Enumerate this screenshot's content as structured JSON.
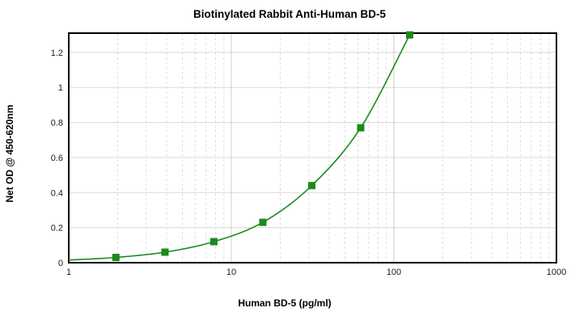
{
  "window": {
    "background": "#ffffff"
  },
  "chart_data": {
    "type": "line",
    "title": "Biotinylated Rabbit Anti-Human BD-5",
    "xlabel": "Human BD-5 (pg/ml)",
    "ylabel": "Net OD @ 450-620nm",
    "xscale": "log",
    "xlim": [
      1,
      1000
    ],
    "ylim": [
      0,
      1.31
    ],
    "x_ticks": [
      1,
      10,
      100,
      1000
    ],
    "y_ticks": [
      0,
      0.2,
      0.4,
      0.6,
      0.8,
      1,
      1.2
    ],
    "grid": {
      "horizontal": "solid",
      "vertical_decade": "solid",
      "vertical_minor": "dashed"
    },
    "legend": "none",
    "series": [
      {
        "name": "standard-curve",
        "marker": "square",
        "color": "#1b8a1b",
        "x": [
          1.95,
          3.91,
          7.81,
          15.63,
          31.25,
          62.5,
          125
        ],
        "y": [
          0.03,
          0.06,
          0.12,
          0.23,
          0.44,
          0.77,
          1.3
        ]
      }
    ],
    "curve_start": {
      "x": 1,
      "y": 0.015
    }
  },
  "style": {
    "frame_color": "#000000",
    "grid_major_color": "#cccccc",
    "grid_minor_color": "#dedede",
    "grid_horizontal_color": "#d9d9d9",
    "tick_label_color": "#1a1a1a"
  }
}
